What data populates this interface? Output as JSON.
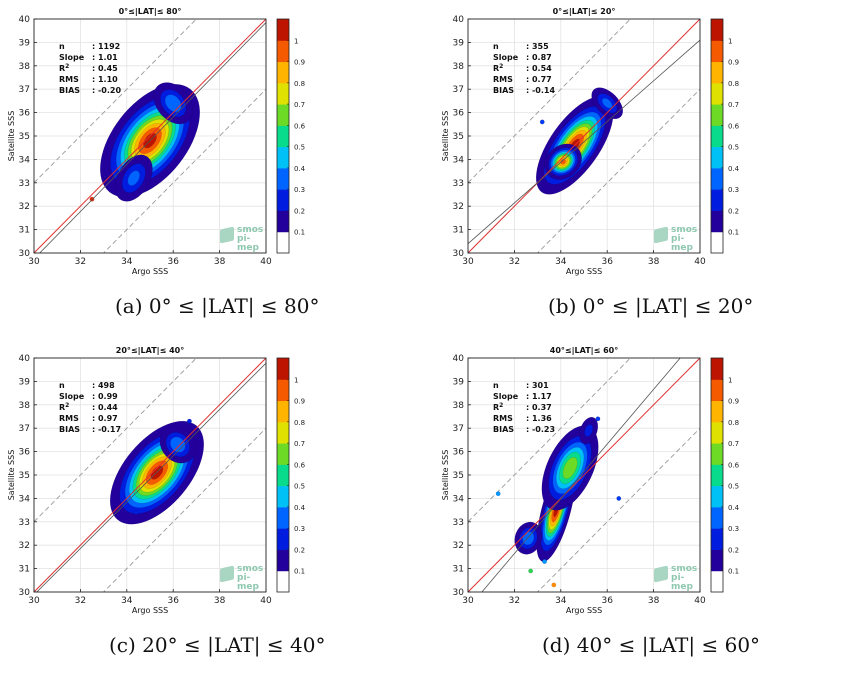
{
  "panels": [
    {
      "id": "a",
      "caption": "(a) 0° ≤ |LAT| ≤ 80°",
      "title": "0°≤|LAT|≤ 80°",
      "xlabel": "Argo SSS",
      "ylabel": "Satellite SSS",
      "logo": {
        "line1": "smos",
        "line2": "pi-mep"
      },
      "stats": [
        {
          "label": "n",
          "value": ": 1192"
        },
        {
          "label": "Slope",
          "value": ": 1.01"
        },
        {
          "label": "R2",
          "value": ": 0.45"
        },
        {
          "label": "RMS",
          "value": ": 1.10"
        },
        {
          "label": "BIAS",
          "value": ": -0.20"
        }
      ]
    },
    {
      "id": "b",
      "caption": "(b) 0° ≤ |LAT| ≤ 20°",
      "title": "0°≤|LAT|≤ 20°",
      "xlabel": "Argo SSS",
      "ylabel": "Satellite SSS",
      "logo": {
        "line1": "smos",
        "line2": "pi-mep"
      },
      "stats": [
        {
          "label": "n",
          "value": ": 355"
        },
        {
          "label": "Slope",
          "value": ": 0.87"
        },
        {
          "label": "R2",
          "value": ": 0.54"
        },
        {
          "label": "RMS",
          "value": ": 0.77"
        },
        {
          "label": "BIAS",
          "value": ": -0.14"
        }
      ]
    },
    {
      "id": "c",
      "caption": "(c) 20° ≤ |LAT| ≤ 40°",
      "title": "20°≤|LAT|≤ 40°",
      "xlabel": "Argo SSS",
      "ylabel": "Satellite SSS",
      "logo": {
        "line1": "smos",
        "line2": "pi-mep"
      },
      "stats": [
        {
          "label": "n",
          "value": ": 498"
        },
        {
          "label": "Slope",
          "value": ": 0.99"
        },
        {
          "label": "R2",
          "value": ": 0.44"
        },
        {
          "label": "RMS",
          "value": ": 0.97"
        },
        {
          "label": "BIAS",
          "value": ": -0.17"
        }
      ]
    },
    {
      "id": "d",
      "caption": "(d) 40° ≤ |LAT| ≤ 60°",
      "title": "40°≤|LAT|≤ 60°",
      "xlabel": "Argo SSS",
      "ylabel": "Satellite SSS",
      "logo": {
        "line1": "smos",
        "line2": "pi-mep"
      },
      "stats": [
        {
          "label": "n",
          "value": ": 301"
        },
        {
          "label": "Slope",
          "value": ": 1.17"
        },
        {
          "label": "R2",
          "value": ": 0.37"
        },
        {
          "label": "RMS",
          "value": ": 1.36"
        },
        {
          "label": "BIAS",
          "value": ": -0.23"
        }
      ]
    }
  ],
  "chart_data": [
    {
      "type": "heatmap",
      "title": "0°≤|LAT|≤ 80°",
      "xlabel": "Argo SSS",
      "ylabel": "Satellite SSS",
      "xlim": [
        30,
        40
      ],
      "ylim": [
        30,
        40
      ],
      "xticks": [
        30,
        32,
        34,
        36,
        38,
        40
      ],
      "yticks": [
        30,
        31,
        32,
        33,
        34,
        35,
        36,
        37,
        38,
        39,
        40
      ],
      "colorbar_ticks": [
        0.1,
        0.2,
        0.3,
        0.4,
        0.5,
        0.6,
        0.7,
        0.8,
        0.9,
        1
      ],
      "regression": {
        "slope": 1.01,
        "intercept": -0.55
      },
      "density_blobs": [
        {
          "cx": 35.0,
          "cy": 34.8,
          "sx": 0.9,
          "sy": 1.6,
          "angle": 52,
          "peak": 1.0
        },
        {
          "cx": 36.0,
          "cy": 36.4,
          "sx": 0.7,
          "sy": 0.5,
          "angle": 40,
          "peak": 0.35
        },
        {
          "cx": 34.3,
          "cy": 33.2,
          "sx": 0.5,
          "sy": 0.8,
          "angle": 60,
          "peak": 0.3
        }
      ],
      "specks": [
        {
          "x": 32.5,
          "y": 32.3,
          "v": 0.9
        }
      ],
      "grid": true
    },
    {
      "type": "heatmap",
      "title": "0°≤|LAT|≤ 20°",
      "xlabel": "Argo SSS",
      "ylabel": "Satellite SSS",
      "xlim": [
        30,
        40
      ],
      "ylim": [
        30,
        40
      ],
      "xticks": [
        30,
        32,
        34,
        36,
        38,
        40
      ],
      "yticks": [
        30,
        31,
        32,
        33,
        34,
        35,
        36,
        37,
        38,
        39,
        40
      ],
      "colorbar_ticks": [
        0.1,
        0.2,
        0.3,
        0.4,
        0.5,
        0.6,
        0.7,
        0.8,
        0.9,
        1
      ],
      "regression": {
        "slope": 0.87,
        "intercept": 4.3
      },
      "density_blobs": [
        {
          "cx": 34.6,
          "cy": 34.6,
          "sx": 0.6,
          "sy": 1.4,
          "angle": 55,
          "peak": 1.0
        },
        {
          "cx": 34.1,
          "cy": 33.9,
          "sx": 0.4,
          "sy": 0.5,
          "angle": 40,
          "peak": 0.9
        },
        {
          "cx": 36.0,
          "cy": 36.4,
          "sx": 0.6,
          "sy": 0.35,
          "angle": 45,
          "peak": 0.3
        }
      ],
      "specks": [
        {
          "x": 33.2,
          "y": 35.6,
          "v": 0.2
        }
      ],
      "grid": true
    },
    {
      "type": "heatmap",
      "title": "20°≤|LAT|≤ 40°",
      "xlabel": "Argo SSS",
      "ylabel": "Satellite SSS",
      "xlim": [
        30,
        40
      ],
      "ylim": [
        30,
        40
      ],
      "xticks": [
        30,
        32,
        34,
        36,
        38,
        40
      ],
      "yticks": [
        30,
        31,
        32,
        33,
        34,
        35,
        36,
        37,
        38,
        39,
        40
      ],
      "colorbar_ticks": [
        0.1,
        0.2,
        0.3,
        0.4,
        0.5,
        0.6,
        0.7,
        0.8,
        0.9,
        1
      ],
      "regression": {
        "slope": 0.99,
        "intercept": 0.18
      },
      "density_blobs": [
        {
          "cx": 35.3,
          "cy": 35.1,
          "sx": 0.8,
          "sy": 1.5,
          "angle": 50,
          "peak": 1.0
        },
        {
          "cx": 36.2,
          "cy": 36.3,
          "sx": 0.6,
          "sy": 0.5,
          "angle": 40,
          "peak": 0.35
        }
      ],
      "specks": [
        {
          "x": 36.7,
          "y": 37.3,
          "v": 0.15
        },
        {
          "x": 34.4,
          "y": 33.4,
          "v": 0.15
        }
      ],
      "grid": true
    },
    {
      "type": "heatmap",
      "title": "40°≤|LAT|≤ 60°",
      "xlabel": "Argo SSS",
      "ylabel": "Satellite SSS",
      "xlim": [
        30,
        40
      ],
      "ylim": [
        30,
        40
      ],
      "xticks": [
        30,
        32,
        34,
        36,
        38,
        40
      ],
      "yticks": [
        30,
        31,
        32,
        33,
        34,
        35,
        36,
        37,
        38,
        39,
        40
      ],
      "colorbar_ticks": [
        0.1,
        0.2,
        0.3,
        0.4,
        0.5,
        0.6,
        0.7,
        0.8,
        0.9,
        1
      ],
      "regression": {
        "slope": 1.17,
        "intercept": -5.8
      },
      "density_blobs": [
        {
          "cx": 33.8,
          "cy": 33.5,
          "sx": 0.35,
          "sy": 1.3,
          "angle": 75,
          "peak": 1.0
        },
        {
          "cx": 34.4,
          "cy": 35.3,
          "sx": 0.6,
          "sy": 1.2,
          "angle": 65,
          "peak": 0.65
        },
        {
          "cx": 32.6,
          "cy": 32.3,
          "sx": 0.4,
          "sy": 0.5,
          "angle": 70,
          "peak": 0.35
        },
        {
          "cx": 35.2,
          "cy": 36.9,
          "sx": 0.3,
          "sy": 0.5,
          "angle": 70,
          "peak": 0.2
        }
      ],
      "specks": [
        {
          "x": 32.7,
          "y": 30.9,
          "v": 0.5
        },
        {
          "x": 33.7,
          "y": 30.3,
          "v": 0.8
        },
        {
          "x": 31.3,
          "y": 34.2,
          "v": 0.3
        },
        {
          "x": 36.5,
          "y": 34.0,
          "v": 0.2
        },
        {
          "x": 35.6,
          "y": 37.4,
          "v": 0.2
        },
        {
          "x": 33.3,
          "y": 31.3,
          "v": 0.3
        }
      ],
      "grid": true
    }
  ]
}
